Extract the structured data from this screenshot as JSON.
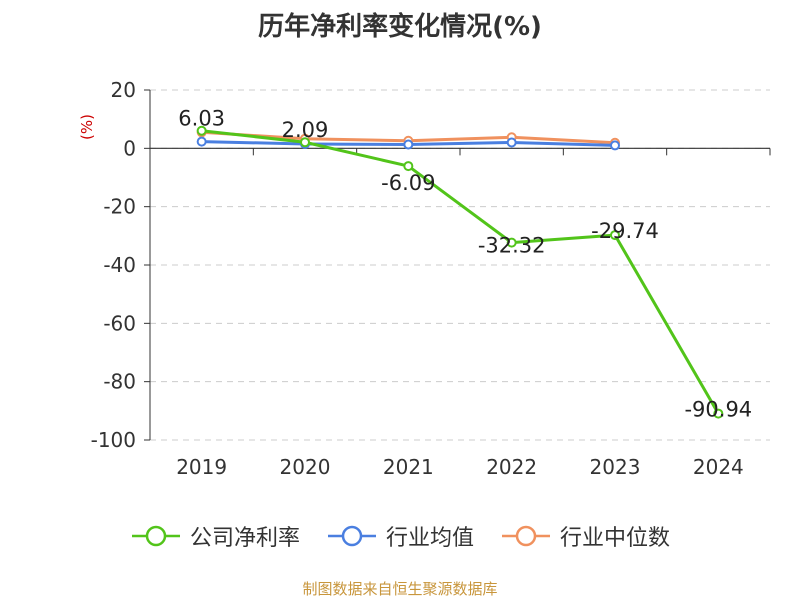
{
  "chart_data": {
    "type": "line",
    "title": "历年净利率变化情况(%)",
    "unit_label": "(%)",
    "categories": [
      "2019",
      "2020",
      "2021",
      "2022",
      "2023",
      "2024"
    ],
    "ylim": [
      -100,
      20
    ],
    "yticks": [
      "20",
      "0",
      "-20",
      "-40",
      "-60",
      "-80",
      "-100"
    ],
    "ytick_values": [
      20,
      0,
      -20,
      -40,
      -60,
      -80,
      -100
    ],
    "grid": true,
    "legend_position": "bottom",
    "series": [
      {
        "name": "公司净利率",
        "color": "#52c41a",
        "values": [
          6.03,
          2.09,
          -6.09,
          -32.32,
          -29.74,
          -90.94
        ],
        "labels": [
          "6.03",
          "2.09",
          "-6.09",
          "-32.32",
          "-29.74",
          "-90.94"
        ]
      },
      {
        "name": "行业均值",
        "color": "#4a7fe0",
        "values": [
          2.3,
          1.5,
          1.3,
          2.0,
          1.0,
          null
        ]
      },
      {
        "name": "行业中位数",
        "color": "#f0915e",
        "values": [
          5.5,
          3.3,
          2.6,
          3.8,
          1.9,
          null
        ]
      }
    ]
  },
  "colors": {
    "unit_label": "#cc0000",
    "source": "#c8963c"
  },
  "source_text": "制图数据来自恒生聚源数据库"
}
